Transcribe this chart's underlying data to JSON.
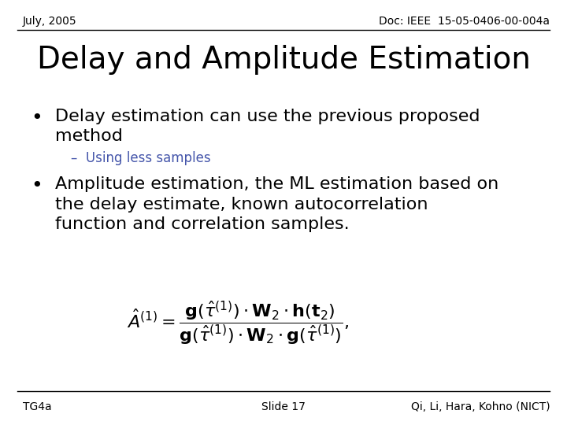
{
  "background_color": "#ffffff",
  "header_left": "July, 2005",
  "header_right": "Doc: IEEE  15-05-0406-00-004a",
  "title": "Delay and Amplitude Estimation",
  "bullet1_line1": "Delay estimation can use the previous proposed",
  "bullet1_line2": "method",
  "sub_bullet1": "–  Using less samples",
  "bullet2_line1": "Amplitude estimation, the ML estimation based on",
  "bullet2_line2": "the delay estimate, known autocorrelation",
  "bullet2_line3": "function and correlation samples.",
  "footer_left": "TG4a",
  "footer_center": "Slide 17",
  "footer_right": "Qi, Li, Hara, Kohno (NICT)",
  "header_fontsize": 10,
  "title_fontsize": 28,
  "bullet_fontsize": 16,
  "sub_bullet_fontsize": 12,
  "footer_fontsize": 10,
  "formula_fontsize": 16,
  "sub_bullet_color": "#4455aa",
  "text_color": "#000000",
  "line_color": "#000000"
}
